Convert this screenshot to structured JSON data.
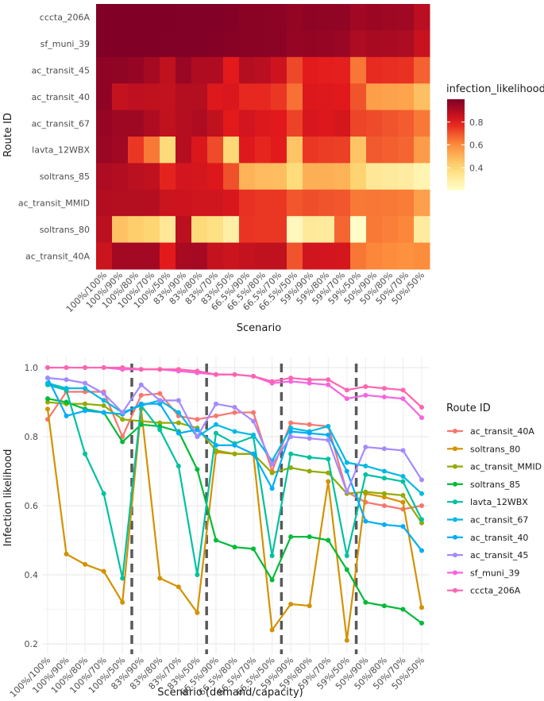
{
  "chart_data": [
    {
      "type": "heatmap",
      "xlabel": "Scenario",
      "ylabel": "Route ID",
      "legend_title": "infection_likelihood",
      "legend_ticks": [
        "0.4",
        "0.6",
        "0.8"
      ],
      "legend_tick_values": [
        0.4,
        0.6,
        0.8
      ],
      "color_range": [
        0.2,
        1.0
      ],
      "scenarios": [
        "100%/100%",
        "100%/90%",
        "100%/80%",
        "100%/70%",
        "100%/50%",
        "83%/90%",
        "83%/80%",
        "83%/70%",
        "83%/50%",
        "66.5%/90%",
        "66.5%/80%",
        "66.5%/70%",
        "66.5%/50%",
        "59%/90%",
        "59%/80%",
        "59%/70%",
        "59%/50%",
        "50%/90%",
        "50%/80%",
        "50%/70%",
        "50%/50%"
      ],
      "routes": [
        "cccta_206A",
        "sf_muni_39",
        "ac_transit_45",
        "ac_transit_40",
        "ac_transit_67",
        "lavta_12WBX",
        "soltrans_85",
        "ac_transit_MMID",
        "soltrans_80",
        "ac_transit_40A"
      ]
    },
    {
      "type": "line",
      "xlabel": "Scenario (demand/capacity)",
      "ylabel": "Infection likelihood",
      "legend_title": "Route ID",
      "ylim": [
        0.17,
        1.03
      ],
      "yticks": [
        "0.2",
        "0.4",
        "0.6",
        "0.8",
        "1.0"
      ],
      "ytick_values": [
        0.2,
        0.4,
        0.6,
        0.8,
        1.0
      ],
      "vlines_after": [
        4,
        8,
        12,
        16
      ],
      "categories": [
        "100%/100%",
        "100%/90%",
        "100%/80%",
        "100%/70%",
        "100%/50%",
        "83%/90%",
        "83%/80%",
        "83%/70%",
        "83%/50%",
        "66.5%/90%",
        "66.5%/80%",
        "66.5%/70%",
        "66.5%/50%",
        "59%/90%",
        "59%/80%",
        "59%/70%",
        "59%/50%",
        "50%/90%",
        "50%/80%",
        "50%/70%",
        "50%/50%"
      ],
      "series": [
        {
          "name": "ac_transit_40A",
          "color": "#F8766D",
          "values": [
            0.85,
            0.93,
            0.93,
            0.93,
            0.8,
            0.92,
            0.925,
            0.86,
            0.85,
            0.86,
            0.87,
            0.87,
            0.7,
            0.84,
            0.835,
            0.83,
            0.64,
            0.61,
            0.6,
            0.59,
            0.6
          ]
        },
        {
          "name": "soltrans_80",
          "color": "#D39200",
          "values": [
            0.88,
            0.46,
            0.43,
            0.41,
            0.32,
            0.88,
            0.39,
            0.365,
            0.29,
            0.755,
            0.75,
            0.75,
            0.24,
            0.315,
            0.31,
            0.67,
            0.21,
            0.635,
            0.625,
            0.61,
            0.305
          ]
        },
        {
          "name": "ac_transit_MMID",
          "color": "#93AA00",
          "values": [
            0.9,
            0.895,
            0.895,
            0.89,
            0.85,
            0.845,
            0.84,
            0.84,
            0.825,
            0.76,
            0.75,
            0.75,
            0.695,
            0.71,
            0.7,
            0.695,
            0.635,
            0.64,
            0.635,
            0.63,
            0.55
          ]
        },
        {
          "name": "soltrans_85",
          "color": "#00BA38",
          "values": [
            0.91,
            0.9,
            0.88,
            0.87,
            0.785,
            0.835,
            0.83,
            0.815,
            0.705,
            0.5,
            0.48,
            0.475,
            0.385,
            0.51,
            0.51,
            0.5,
            0.415,
            0.32,
            0.31,
            0.3,
            0.26
          ]
        },
        {
          "name": "lavta_12WBX",
          "color": "#00C19F",
          "values": [
            0.95,
            0.935,
            0.75,
            0.635,
            0.39,
            0.89,
            0.82,
            0.715,
            0.4,
            0.81,
            0.78,
            0.8,
            0.455,
            0.75,
            0.74,
            0.735,
            0.455,
            0.69,
            0.68,
            0.67,
            0.56
          ]
        },
        {
          "name": "ac_transit_67",
          "color": "#00B9E3",
          "values": [
            0.955,
            0.94,
            0.94,
            0.905,
            0.87,
            0.89,
            0.905,
            0.87,
            0.8,
            0.835,
            0.815,
            0.805,
            0.73,
            0.825,
            0.815,
            0.83,
            0.725,
            0.715,
            0.7,
            0.685,
            0.635
          ]
        },
        {
          "name": "ac_transit_40",
          "color": "#00ADFA",
          "values": [
            0.97,
            0.86,
            0.875,
            0.87,
            0.865,
            0.895,
            0.895,
            0.81,
            0.82,
            0.775,
            0.775,
            0.75,
            0.65,
            0.815,
            0.81,
            0.805,
            0.7,
            0.555,
            0.545,
            0.54,
            0.47
          ]
        },
        {
          "name": "ac_transit_45",
          "color": "#A58AFF",
          "values": [
            0.97,
            0.965,
            0.955,
            0.925,
            0.87,
            0.95,
            0.905,
            0.905,
            0.8,
            0.895,
            0.885,
            0.845,
            0.72,
            0.8,
            0.795,
            0.79,
            0.64,
            0.77,
            0.765,
            0.76,
            0.675
          ]
        },
        {
          "name": "sf_muni_39",
          "color": "#F564E3",
          "values": [
            1.0,
            1.0,
            1.0,
            1.0,
            0.995,
            0.995,
            0.995,
            0.99,
            0.985,
            0.98,
            0.98,
            0.975,
            0.955,
            0.96,
            0.955,
            0.95,
            0.91,
            0.92,
            0.915,
            0.91,
            0.855
          ]
        },
        {
          "name": "cccta_206A",
          "color": "#FF64B0",
          "values": [
            1.0,
            1.0,
            1.0,
            1.0,
            1.0,
            0.995,
            0.995,
            0.995,
            0.99,
            0.98,
            0.98,
            0.975,
            0.96,
            0.97,
            0.965,
            0.965,
            0.935,
            0.945,
            0.94,
            0.935,
            0.885
          ]
        }
      ]
    }
  ]
}
